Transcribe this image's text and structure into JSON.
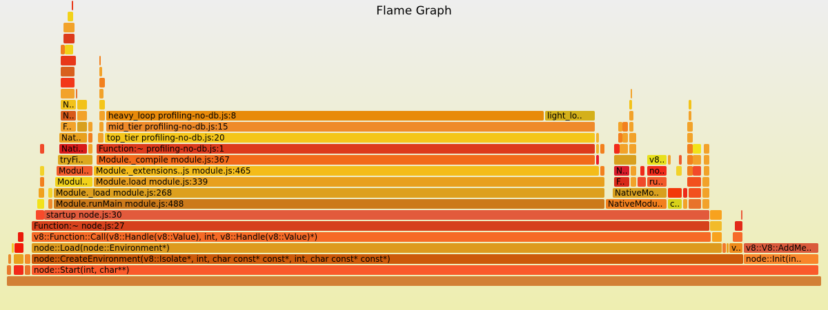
{
  "chart_data": {
    "type": "flamegraph",
    "title": "Flame Graph",
    "frames": [
      {
        "label": "",
        "depth": 0,
        "start": 10,
        "end": 1190,
        "color": "#d28036"
      },
      {
        "label": "",
        "depth": 1,
        "start": 10,
        "end": 16,
        "color": "#e8792c"
      },
      {
        "label": "",
        "depth": 1,
        "start": 20,
        "end": 34,
        "color": "#f22a1a"
      },
      {
        "label": "",
        "depth": 1,
        "start": 36,
        "end": 44,
        "color": "#e9732a"
      },
      {
        "label": "node::Start(int, char**)",
        "depth": 1,
        "start": 46,
        "end": 1186,
        "color": "#fa5a2b"
      },
      {
        "label": "",
        "depth": 2,
        "start": 12,
        "end": 16,
        "color": "#e88a2a"
      },
      {
        "label": "",
        "depth": 2,
        "start": 20,
        "end": 34,
        "color": "#e8a11e"
      },
      {
        "label": "",
        "depth": 2,
        "start": 36,
        "end": 44,
        "color": "#f28b2a"
      },
      {
        "label": "node::CreateEnvironment(v8::Isolate*, int, char const* const*, int, char const* const*)",
        "depth": 2,
        "start": 46,
        "end": 1077,
        "color": "#cc5a0a"
      },
      {
        "label": "node::Init(in..",
        "depth": 2,
        "start": 1078,
        "end": 1186,
        "color": "#f8852a"
      },
      {
        "label": "",
        "depth": 3,
        "start": 17,
        "end": 20,
        "color": "#f4c62a"
      },
      {
        "label": "",
        "depth": 3,
        "start": 21,
        "end": 34,
        "color": "#f21a08"
      },
      {
        "label": "node::Load(node::Environment*)",
        "depth": 3,
        "start": 46,
        "end": 1046,
        "color": "#dd9a1e"
      },
      {
        "label": "",
        "depth": 3,
        "start": 1047,
        "end": 1052,
        "color": "#f1792a"
      },
      {
        "label": "",
        "depth": 3,
        "start": 1053,
        "end": 1056,
        "color": "#e8a01e"
      },
      {
        "label": "v..",
        "depth": 3,
        "start": 1057,
        "end": 1076,
        "color": "#ee8a1a"
      },
      {
        "label": "v8::V8::AddMe..",
        "depth": 3,
        "start": 1078,
        "end": 1186,
        "color": "#da5a3c"
      },
      {
        "label": "",
        "depth": 4,
        "start": 26,
        "end": 34,
        "color": "#ea1a0a"
      },
      {
        "label": "v8::Function::Call(v8::Handle(v8::Value), int, v8::Handle(v8::Value)*)",
        "depth": 4,
        "start": 46,
        "end": 1030,
        "color": "#f66a26"
      },
      {
        "label": "",
        "depth": 4,
        "start": 1032,
        "end": 1046,
        "color": "#f8a21e"
      },
      {
        "label": "",
        "depth": 4,
        "start": 1062,
        "end": 1076,
        "color": "#f66a2a"
      },
      {
        "label": "Function:~ node.js:27",
        "depth": 5,
        "start": 46,
        "end": 1028,
        "color": "#d6411c"
      },
      {
        "label": "",
        "depth": 5,
        "start": 1029,
        "end": 1046,
        "color": "#f2bb2a"
      },
      {
        "label": "",
        "depth": 5,
        "start": 1065,
        "end": 1076,
        "color": "#e22a1a"
      },
      {
        "label": "",
        "depth": 6,
        "start": 52,
        "end": 64,
        "color": "#f84a2a"
      },
      {
        "label": "startup node.js:30",
        "depth": 6,
        "start": 64,
        "end": 1028,
        "color": "#e25a3c"
      },
      {
        "label": "",
        "depth": 6,
        "start": 1029,
        "end": 1046,
        "color": "#f8a21e"
      },
      {
        "label": "",
        "depth": 6,
        "start": 1074,
        "end": 1076,
        "color": "#ea5a3c"
      },
      {
        "label": "",
        "depth": 7,
        "start": 54,
        "end": 64,
        "color": "#f2e21a"
      },
      {
        "label": "",
        "depth": 7,
        "start": 70,
        "end": 76,
        "color": "#ee8a2a"
      },
      {
        "label": "Module.runMain module.js:488",
        "depth": 7,
        "start": 78,
        "end": 876,
        "color": "#cc7a1a"
      },
      {
        "label": "NativeModu..",
        "depth": 7,
        "start": 878,
        "end": 966,
        "color": "#f2801e"
      },
      {
        "label": "c..",
        "depth": 7,
        "start": 968,
        "end": 988,
        "color": "#d8d21a"
      },
      {
        "label": "",
        "depth": 7,
        "start": 990,
        "end": 996,
        "color": "#f2a22a"
      },
      {
        "label": "",
        "depth": 7,
        "start": 998,
        "end": 1016,
        "color": "#e8732a"
      },
      {
        "label": "",
        "depth": 7,
        "start": 1018,
        "end": 1028,
        "color": "#f2a22a"
      },
      {
        "label": "",
        "depth": 8,
        "start": 56,
        "end": 64,
        "color": "#f0a21e"
      },
      {
        "label": "",
        "depth": 8,
        "start": 70,
        "end": 76,
        "color": "#f4d22a"
      },
      {
        "label": "Module._load module.js:268",
        "depth": 8,
        "start": 78,
        "end": 876,
        "color": "#dda01e"
      },
      {
        "label": "NativeMo..",
        "depth": 8,
        "start": 888,
        "end": 966,
        "color": "#d8a01e"
      },
      {
        "label": "",
        "depth": 8,
        "start": 968,
        "end": 988,
        "color": "#f2380a"
      },
      {
        "label": "",
        "depth": 8,
        "start": 990,
        "end": 996,
        "color": "#ee2a1a"
      },
      {
        "label": "",
        "depth": 8,
        "start": 998,
        "end": 1016,
        "color": "#f2501e"
      },
      {
        "label": "",
        "depth": 8,
        "start": 1018,
        "end": 1028,
        "color": "#f2a22a"
      },
      {
        "label": "",
        "depth": 9,
        "start": 58,
        "end": 64,
        "color": "#f2801e"
      },
      {
        "label": "Modul..",
        "depth": 9,
        "start": 80,
        "end": 134,
        "color": "#f2d21a"
      },
      {
        "label": "Module.load module.js:339",
        "depth": 9,
        "start": 136,
        "end": 876,
        "color": "#e8a01e"
      },
      {
        "label": "F..",
        "depth": 9,
        "start": 890,
        "end": 912,
        "color": "#d82a1a"
      },
      {
        "label": "",
        "depth": 9,
        "start": 914,
        "end": 922,
        "color": "#f2a22a"
      },
      {
        "label": "",
        "depth": 9,
        "start": 924,
        "end": 936,
        "color": "#f04a2a"
      },
      {
        "label": "ru..",
        "depth": 9,
        "start": 938,
        "end": 966,
        "color": "#f25a2a"
      },
      {
        "label": "",
        "depth": 9,
        "start": 996,
        "end": 1016,
        "color": "#f2501e"
      },
      {
        "label": "",
        "depth": 9,
        "start": 1018,
        "end": 1028,
        "color": "#f2a22a"
      },
      {
        "label": "",
        "depth": 10,
        "start": 58,
        "end": 64,
        "color": "#f2d22a"
      },
      {
        "label": "Modul..",
        "depth": 10,
        "start": 82,
        "end": 134,
        "color": "#f05a2a"
      },
      {
        "label": "Module._extensions..js module.js:465",
        "depth": 10,
        "start": 136,
        "end": 868,
        "color": "#f4bc1a"
      },
      {
        "label": "",
        "depth": 10,
        "start": 870,
        "end": 876,
        "color": "#f2801e"
      },
      {
        "label": "N..",
        "depth": 10,
        "start": 890,
        "end": 912,
        "color": "#d81a2a"
      },
      {
        "label": "",
        "depth": 10,
        "start": 914,
        "end": 922,
        "color": "#f2a22a"
      },
      {
        "label": "",
        "depth": 10,
        "start": 928,
        "end": 934,
        "color": "#f02a1a"
      },
      {
        "label": "no..",
        "depth": 10,
        "start": 938,
        "end": 966,
        "color": "#f02a1a"
      },
      {
        "label": "",
        "depth": 10,
        "start": 980,
        "end": 988,
        "color": "#f2d22a"
      },
      {
        "label": "",
        "depth": 10,
        "start": 996,
        "end": 1004,
        "color": "#f2801e"
      },
      {
        "label": "",
        "depth": 10,
        "start": 1004,
        "end": 1016,
        "color": "#f24a2a"
      },
      {
        "label": "",
        "depth": 10,
        "start": 1020,
        "end": 1028,
        "color": "#f2a22a"
      },
      {
        "label": "tryFi..",
        "depth": 11,
        "start": 84,
        "end": 134,
        "color": "#dca81e"
      },
      {
        "label": "Module._compile module.js:367",
        "depth": 11,
        "start": 140,
        "end": 862,
        "color": "#f26a1a"
      },
      {
        "label": "",
        "depth": 11,
        "start": 864,
        "end": 868,
        "color": "#ea1a2a"
      },
      {
        "label": "",
        "depth": 11,
        "start": 890,
        "end": 922,
        "color": "#d8a01e"
      },
      {
        "label": "v8..",
        "depth": 11,
        "start": 938,
        "end": 966,
        "color": "#e8e01a"
      },
      {
        "label": "",
        "depth": 11,
        "start": 968,
        "end": 972,
        "color": "#f2a22a"
      },
      {
        "label": "",
        "depth": 11,
        "start": 984,
        "end": 988,
        "color": "#ee5a2a"
      },
      {
        "label": "",
        "depth": 11,
        "start": 996,
        "end": 1004,
        "color": "#f2801e"
      },
      {
        "label": "",
        "depth": 11,
        "start": 1004,
        "end": 1016,
        "color": "#f2a22a"
      },
      {
        "label": "",
        "depth": 11,
        "start": 1020,
        "end": 1028,
        "color": "#f2a22a"
      },
      {
        "label": "",
        "depth": 12,
        "start": 58,
        "end": 64,
        "color": "#f04a2a"
      },
      {
        "label": "Nati..",
        "depth": 12,
        "start": 86,
        "end": 126,
        "color": "#d81a1a"
      },
      {
        "label": "",
        "depth": 12,
        "start": 128,
        "end": 134,
        "color": "#f2a22a"
      },
      {
        "label": "Function:~ profiling-no-db.js:1",
        "depth": 12,
        "start": 140,
        "end": 862,
        "color": "#dd3a1c"
      },
      {
        "label": "",
        "depth": 12,
        "start": 864,
        "end": 868,
        "color": "#f2b22a"
      },
      {
        "label": "",
        "depth": 12,
        "start": 870,
        "end": 876,
        "color": "#f2801e"
      },
      {
        "label": "",
        "depth": 12,
        "start": 890,
        "end": 898,
        "color": "#f22a1a"
      },
      {
        "label": "",
        "depth": 12,
        "start": 898,
        "end": 910,
        "color": "#f2a22a"
      },
      {
        "label": "",
        "depth": 12,
        "start": 912,
        "end": 922,
        "color": "#f2a22a"
      },
      {
        "label": "",
        "depth": 12,
        "start": 996,
        "end": 1004,
        "color": "#f2801e"
      },
      {
        "label": "",
        "depth": 12,
        "start": 1004,
        "end": 1016,
        "color": "#f2e21a"
      },
      {
        "label": "",
        "depth": 12,
        "start": 1020,
        "end": 1028,
        "color": "#f2a22a"
      },
      {
        "label": "Nat..",
        "depth": 13,
        "start": 86,
        "end": 126,
        "color": "#e8a01e"
      },
      {
        "label": "",
        "depth": 13,
        "start": 128,
        "end": 134,
        "color": "#f2801e"
      },
      {
        "label": "",
        "depth": 13,
        "start": 142,
        "end": 150,
        "color": "#f2a22a"
      },
      {
        "label": "top_tier profiling-no-db.js:20",
        "depth": 13,
        "start": 152,
        "end": 862,
        "color": "#f4c61a"
      },
      {
        "label": "",
        "depth": 13,
        "start": 864,
        "end": 868,
        "color": "#f2b22a"
      },
      {
        "label": "",
        "depth": 13,
        "start": 896,
        "end": 902,
        "color": "#f2801e"
      },
      {
        "label": "",
        "depth": 13,
        "start": 902,
        "end": 910,
        "color": "#f2a22a"
      },
      {
        "label": "",
        "depth": 13,
        "start": 912,
        "end": 922,
        "color": "#f2a22a"
      },
      {
        "label": "",
        "depth": 13,
        "start": 996,
        "end": 1004,
        "color": "#f2a22a"
      },
      {
        "label": "F..",
        "depth": 14,
        "start": 88,
        "end": 110,
        "color": "#f2a22a"
      },
      {
        "label": "",
        "depth": 14,
        "start": 112,
        "end": 126,
        "color": "#d8a01e"
      },
      {
        "label": "",
        "depth": 14,
        "start": 128,
        "end": 134,
        "color": "#f2a22a"
      },
      {
        "label": "",
        "depth": 14,
        "start": 144,
        "end": 150,
        "color": "#f2a22a"
      },
      {
        "label": "mid_tier profiling-no-db.js:15",
        "depth": 14,
        "start": 154,
        "end": 862,
        "color": "#ef8a2a"
      },
      {
        "label": "",
        "depth": 14,
        "start": 896,
        "end": 902,
        "color": "#f2a22a"
      },
      {
        "label": "",
        "depth": 14,
        "start": 902,
        "end": 910,
        "color": "#f2801e"
      },
      {
        "label": "",
        "depth": 14,
        "start": 912,
        "end": 918,
        "color": "#f2a22a"
      },
      {
        "label": "",
        "depth": 14,
        "start": 996,
        "end": 1004,
        "color": "#f2a22a"
      },
      {
        "label": "N..",
        "depth": 15,
        "start": 88,
        "end": 110,
        "color": "#d85a1a"
      },
      {
        "label": "",
        "depth": 15,
        "start": 112,
        "end": 126,
        "color": "#f2a22a"
      },
      {
        "label": "",
        "depth": 15,
        "start": 144,
        "end": 152,
        "color": "#f2a22a"
      },
      {
        "label": "heavy_loop profiling-no-db.js:8",
        "depth": 15,
        "start": 154,
        "end": 788,
        "color": "#e88a0a"
      },
      {
        "label": "light_lo..",
        "depth": 15,
        "start": 790,
        "end": 862,
        "color": "#d4b01a"
      },
      {
        "label": "",
        "depth": 15,
        "start": 912,
        "end": 918,
        "color": "#f2a22a"
      },
      {
        "label": "",
        "depth": 15,
        "start": 998,
        "end": 1002,
        "color": "#f2a22a"
      },
      {
        "label": "N..",
        "depth": 16,
        "start": 88,
        "end": 110,
        "color": "#f2c21a"
      },
      {
        "label": "",
        "depth": 16,
        "start": 112,
        "end": 126,
        "color": "#f2c21a"
      },
      {
        "label": "",
        "depth": 16,
        "start": 144,
        "end": 152,
        "color": "#f4c61a"
      },
      {
        "label": "",
        "depth": 16,
        "start": 912,
        "end": 916,
        "color": "#f2c21a"
      },
      {
        "label": "",
        "depth": 16,
        "start": 998,
        "end": 1002,
        "color": "#f2c21a"
      },
      {
        "label": "",
        "depth": 17,
        "start": 88,
        "end": 108,
        "color": "#f2a22a"
      },
      {
        "label": "",
        "depth": 17,
        "start": 110,
        "end": 112,
        "color": "#e8732a"
      },
      {
        "label": "",
        "depth": 17,
        "start": 144,
        "end": 150,
        "color": "#f2a22a"
      },
      {
        "label": "",
        "depth": 17,
        "start": 914,
        "end": 916,
        "color": "#f2a22a"
      },
      {
        "label": "",
        "depth": 18,
        "start": 88,
        "end": 108,
        "color": "#f2381a"
      },
      {
        "label": "",
        "depth": 18,
        "start": 144,
        "end": 152,
        "color": "#f2801e"
      },
      {
        "label": "",
        "depth": 19,
        "start": 88,
        "end": 108,
        "color": "#d8601e"
      },
      {
        "label": "",
        "depth": 19,
        "start": 144,
        "end": 148,
        "color": "#f2a22a"
      },
      {
        "label": "",
        "depth": 20,
        "start": 88,
        "end": 110,
        "color": "#e8381a"
      },
      {
        "label": "",
        "depth": 20,
        "start": 144,
        "end": 146,
        "color": "#f2801e"
      },
      {
        "label": "",
        "depth": 21,
        "start": 88,
        "end": 94,
        "color": "#f2801e"
      },
      {
        "label": "",
        "depth": 21,
        "start": 94,
        "end": 106,
        "color": "#f2d21a"
      },
      {
        "label": "",
        "depth": 22,
        "start": 92,
        "end": 108,
        "color": "#dd3a1c"
      },
      {
        "label": "",
        "depth": 23,
        "start": 92,
        "end": 108,
        "color": "#f2a22a"
      },
      {
        "label": "",
        "depth": 24,
        "start": 98,
        "end": 106,
        "color": "#f2d21a"
      },
      {
        "label": "",
        "depth": 25,
        "start": 104,
        "end": 106,
        "color": "#e8381a"
      }
    ]
  }
}
